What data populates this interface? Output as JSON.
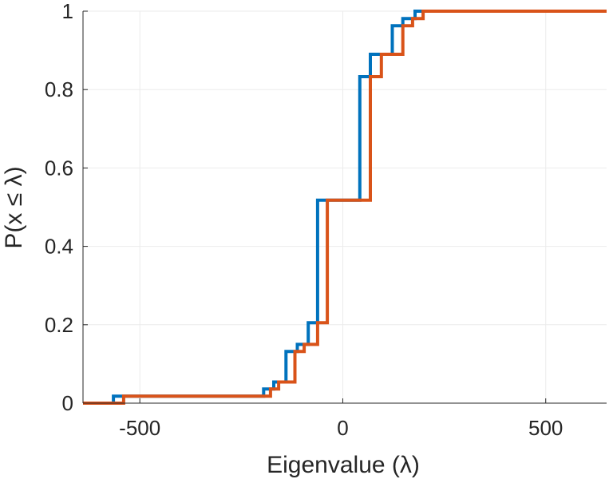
{
  "chart_data": {
    "type": "line",
    "step": true,
    "xlabel": "Eigenvalue (λ)",
    "ylabel": "P(x ≤ λ)",
    "xlim": [
      -640,
      650
    ],
    "ylim": [
      0,
      1
    ],
    "xticks": [
      -500,
      0,
      500
    ],
    "xtick_labels": [
      "-500",
      "0",
      "500"
    ],
    "yticks": [
      0,
      0.2,
      0.4,
      0.6,
      0.8,
      1
    ],
    "ytick_labels": [
      "0",
      "0.2",
      "0.4",
      "0.6",
      "0.8",
      "1"
    ],
    "grid": true,
    "series": [
      {
        "color": "#0072BD",
        "x": [
          -640,
          -565,
          -565,
          -195,
          -195,
          -170,
          -170,
          -140,
          -140,
          -112,
          -112,
          -85,
          -85,
          -62,
          -62,
          42,
          42,
          68,
          68,
          122,
          122,
          148,
          148,
          178,
          178,
          650
        ],
        "y": [
          0,
          0,
          0.018,
          0.018,
          0.036,
          0.036,
          0.054,
          0.054,
          0.132,
          0.132,
          0.15,
          0.15,
          0.205,
          0.205,
          0.518,
          0.518,
          0.833,
          0.833,
          0.89,
          0.89,
          0.963,
          0.963,
          0.981,
          0.981,
          1,
          1
        ]
      },
      {
        "color": "#D95319",
        "x": [
          -640,
          -540,
          -540,
          -178,
          -178,
          -158,
          -158,
          -118,
          -118,
          -95,
          -95,
          -62,
          -62,
          -38,
          -38,
          68,
          68,
          95,
          95,
          148,
          148,
          172,
          172,
          198,
          198,
          650
        ],
        "y": [
          0,
          0,
          0.018,
          0.018,
          0.036,
          0.036,
          0.054,
          0.054,
          0.132,
          0.132,
          0.15,
          0.15,
          0.205,
          0.205,
          0.518,
          0.518,
          0.833,
          0.833,
          0.89,
          0.89,
          0.963,
          0.963,
          0.981,
          0.981,
          1,
          1
        ]
      }
    ]
  }
}
